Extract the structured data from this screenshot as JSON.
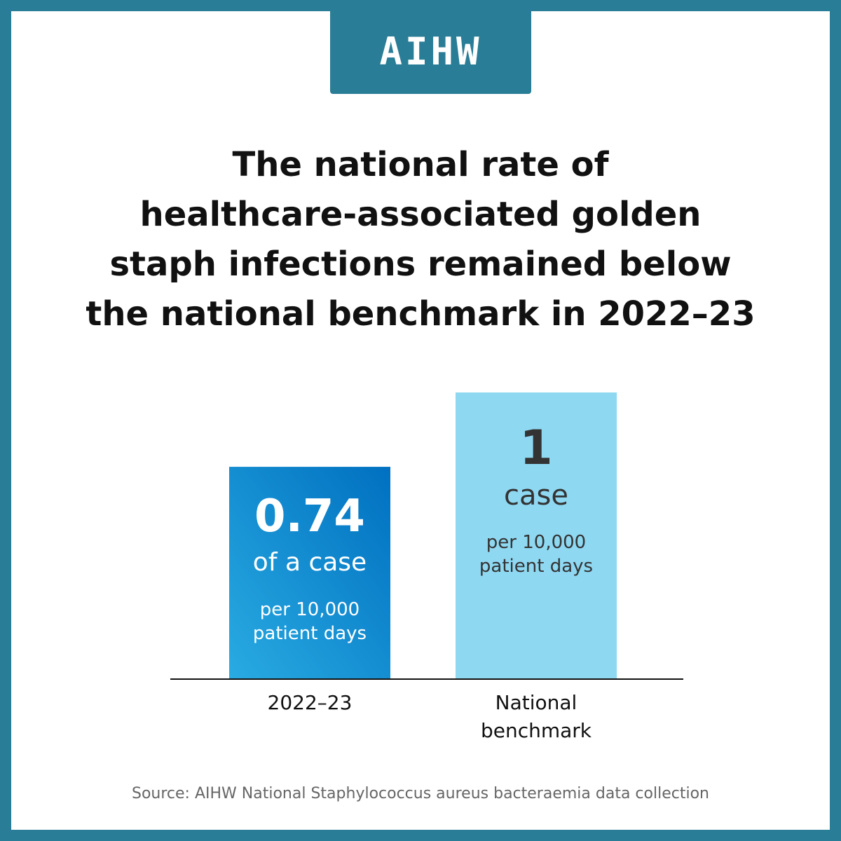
{
  "logo": {
    "text": "AIHW"
  },
  "headline": {
    "lines": [
      "The national rate of",
      "healthcare-associated golden",
      "staph infections remained below",
      "the national benchmark in 2022–23"
    ]
  },
  "chart_data": {
    "type": "bar",
    "categories": [
      "2022–23",
      "National benchmark"
    ],
    "category_label_lines": [
      [
        "2022–23"
      ],
      [
        "National",
        "benchmark"
      ]
    ],
    "values": [
      0.74,
      1
    ],
    "value_labels": [
      "0.74",
      "1"
    ],
    "unit_labels": [
      "of a case",
      "case"
    ],
    "sub_label_lines": [
      [
        "per 10,000",
        "patient days"
      ],
      [
        "per 10,000",
        "patient days"
      ]
    ],
    "title": "The national rate of healthcare-associated golden staph infections remained below the national benchmark in 2022–23",
    "xlabel": "",
    "ylabel": "",
    "ylim": [
      0,
      1.1
    ],
    "grid": false,
    "legend": "none"
  },
  "colors": {
    "frame": "#2a7d96",
    "bar_2022_top": "#0070c0",
    "bar_2022_bottom": "#29abe2",
    "bar_benchmark": "#8fd8f2",
    "text_on_dark_bar": "#ffffff",
    "text_on_light_bar": "#333333",
    "axis": "#111111"
  },
  "source": {
    "text": "Source: AIHW National Staphylococcus aureus bacteraemia data collection"
  }
}
